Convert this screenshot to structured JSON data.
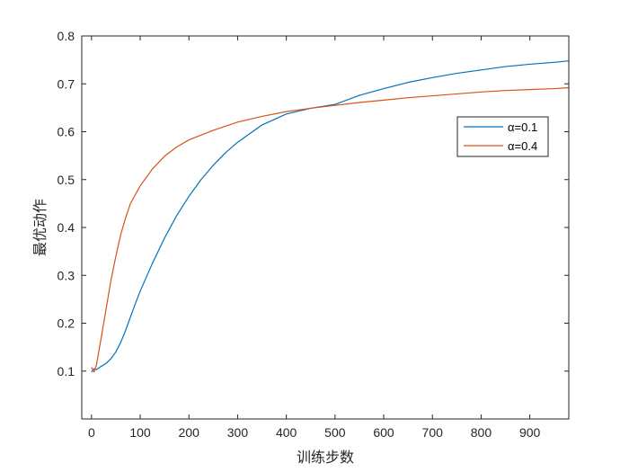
{
  "chart_data": {
    "type": "line",
    "xlabel": "训练步数",
    "ylabel": "最优动作",
    "xlim": [
      -20,
      980
    ],
    "ylim": [
      0.0,
      0.8
    ],
    "xticks": [
      0,
      100,
      200,
      300,
      400,
      500,
      600,
      700,
      800,
      900
    ],
    "yticks": [
      0.1,
      0.2,
      0.3,
      0.4,
      0.5,
      0.6,
      0.7,
      0.8
    ],
    "grid": false,
    "legend_position": "top-right",
    "series": [
      {
        "name": "α=0.1",
        "color": "#0072BD",
        "x": [
          0,
          5,
          10,
          20,
          30,
          40,
          50,
          60,
          70,
          80,
          90,
          100,
          125,
          150,
          175,
          200,
          225,
          250,
          275,
          300,
          350,
          400,
          450,
          500,
          550,
          600,
          650,
          700,
          750,
          800,
          850,
          900,
          950,
          980
        ],
        "y": [
          0.098,
          0.105,
          0.103,
          0.11,
          0.116,
          0.126,
          0.14,
          0.16,
          0.185,
          0.213,
          0.241,
          0.267,
          0.325,
          0.378,
          0.425,
          0.465,
          0.5,
          0.53,
          0.556,
          0.578,
          0.614,
          0.637,
          0.649,
          0.657,
          0.676,
          0.69,
          0.703,
          0.713,
          0.722,
          0.729,
          0.736,
          0.741,
          0.745,
          0.748
        ]
      },
      {
        "name": "α=0.4",
        "color": "#D95319",
        "x": [
          0,
          5,
          10,
          20,
          30,
          40,
          50,
          60,
          70,
          80,
          100,
          125,
          150,
          175,
          200,
          250,
          300,
          350,
          400,
          450,
          500,
          550,
          600,
          650,
          700,
          750,
          800,
          850,
          900,
          950,
          980
        ],
        "y": [
          0.108,
          0.098,
          0.112,
          0.17,
          0.23,
          0.29,
          0.34,
          0.385,
          0.42,
          0.45,
          0.487,
          0.522,
          0.549,
          0.568,
          0.583,
          0.603,
          0.62,
          0.632,
          0.642,
          0.649,
          0.655,
          0.661,
          0.666,
          0.671,
          0.675,
          0.679,
          0.683,
          0.686,
          0.688,
          0.69,
          0.692
        ]
      }
    ]
  }
}
